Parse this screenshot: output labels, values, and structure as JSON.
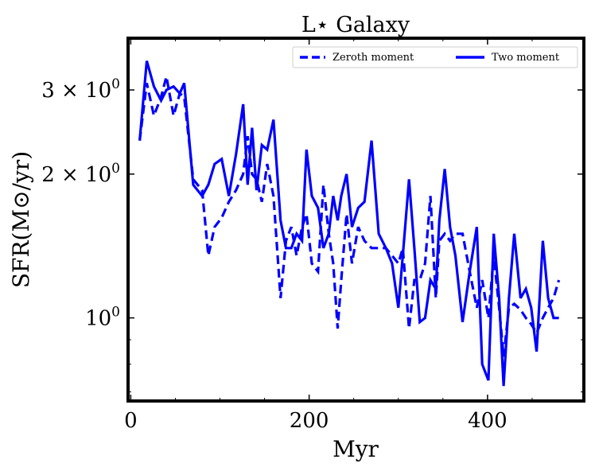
{
  "chart_data": {
    "type": "line",
    "title": "L⋆ Galaxy",
    "xlabel": "Myr",
    "ylabel": "SFR(M⊙/yr)",
    "xlim": [
      -3,
      508
    ],
    "ylim": [
      0.67,
      3.85
    ],
    "yscale": "log",
    "grid": false,
    "legend_position": "top-right",
    "x_ticks": [
      {
        "value": 0,
        "label": "0"
      },
      {
        "value": 200,
        "label": "200"
      },
      {
        "value": 400,
        "label": "400"
      }
    ],
    "y_ticks": [
      {
        "value": 1,
        "base": "10",
        "exp": "0",
        "coef": ""
      },
      {
        "value": 2,
        "base": "10",
        "exp": "0",
        "coef": "2 × "
      },
      {
        "value": 3,
        "base": "10",
        "exp": "0",
        "coef": "3 × "
      }
    ],
    "series": [
      {
        "name": "Zeroth moment",
        "color": "#0000ff",
        "dash": true,
        "x": [
          10,
          18,
          26,
          34,
          40,
          48,
          55,
          60,
          70,
          80,
          87,
          94,
          102,
          110,
          118,
          126,
          131,
          136,
          141,
          147,
          153,
          160,
          168,
          174,
          180,
          186,
          192,
          197,
          203,
          210,
          216,
          222,
          227,
          232,
          236,
          242,
          248,
          255,
          262,
          270,
          278,
          286,
          293,
          300,
          305,
          312,
          318,
          324,
          330,
          336,
          342,
          346,
          352,
          358,
          364,
          372,
          380,
          388,
          394,
          401,
          407,
          413,
          418,
          424,
          430,
          437,
          443,
          449,
          455,
          462,
          468,
          474,
          480
        ],
        "y": [
          2.35,
          3.1,
          2.65,
          2.9,
          3.2,
          2.65,
          2.95,
          2.9,
          1.95,
          1.85,
          1.35,
          1.55,
          1.62,
          1.75,
          1.85,
          2.0,
          2.4,
          2.0,
          1.95,
          1.75,
          2.1,
          1.8,
          1.1,
          1.45,
          1.55,
          1.35,
          1.55,
          1.65,
          1.3,
          1.25,
          1.9,
          1.5,
          1.3,
          0.95,
          1.2,
          1.65,
          1.3,
          1.55,
          1.45,
          1.4,
          1.4,
          1.4,
          1.35,
          1.3,
          1.4,
          0.95,
          1.2,
          1.2,
          1.3,
          1.8,
          1.1,
          1.45,
          1.5,
          1.45,
          1.5,
          1.5,
          1.25,
          1.05,
          1.2,
          1.0,
          1.35,
          1.05,
          0.83,
          1.05,
          1.07,
          1.04,
          1.0,
          0.97,
          0.93,
          1.0,
          1.05,
          1.1,
          1.2
        ]
      },
      {
        "name": "Two moment",
        "color": "#0000ff",
        "dash": false,
        "x": [
          10,
          18,
          26,
          34,
          40,
          48,
          55,
          60,
          70,
          80,
          87,
          94,
          102,
          110,
          118,
          126,
          131,
          136,
          141,
          147,
          153,
          160,
          168,
          174,
          180,
          186,
          192,
          197,
          203,
          210,
          216,
          222,
          227,
          232,
          236,
          242,
          248,
          255,
          262,
          270,
          278,
          286,
          293,
          300,
          305,
          312,
          318,
          324,
          330,
          336,
          342,
          346,
          352,
          358,
          364,
          372,
          380,
          388,
          394,
          401,
          407,
          413,
          418,
          424,
          430,
          437,
          443,
          449,
          455,
          462,
          468,
          474,
          480
        ],
        "y": [
          2.35,
          3.45,
          3.05,
          2.85,
          3.0,
          3.05,
          2.95,
          3.1,
          1.9,
          1.8,
          1.9,
          2.1,
          2.15,
          1.8,
          2.2,
          2.8,
          1.9,
          2.5,
          1.85,
          2.3,
          2.25,
          2.6,
          1.6,
          1.4,
          1.4,
          1.5,
          1.45,
          2.25,
          1.8,
          1.7,
          1.4,
          1.5,
          1.8,
          1.6,
          1.8,
          2.0,
          1.55,
          1.7,
          1.75,
          2.35,
          1.5,
          1.4,
          1.3,
          1.05,
          1.35,
          1.95,
          1.4,
          0.98,
          1.0,
          1.2,
          1.15,
          1.6,
          2.05,
          1.55,
          1.35,
          0.98,
          1.25,
          1.55,
          0.8,
          0.74,
          1.5,
          1.1,
          0.72,
          1.1,
          1.5,
          1.1,
          1.15,
          1.05,
          0.85,
          1.45,
          1.1,
          1.0,
          1.0
        ]
      }
    ]
  }
}
